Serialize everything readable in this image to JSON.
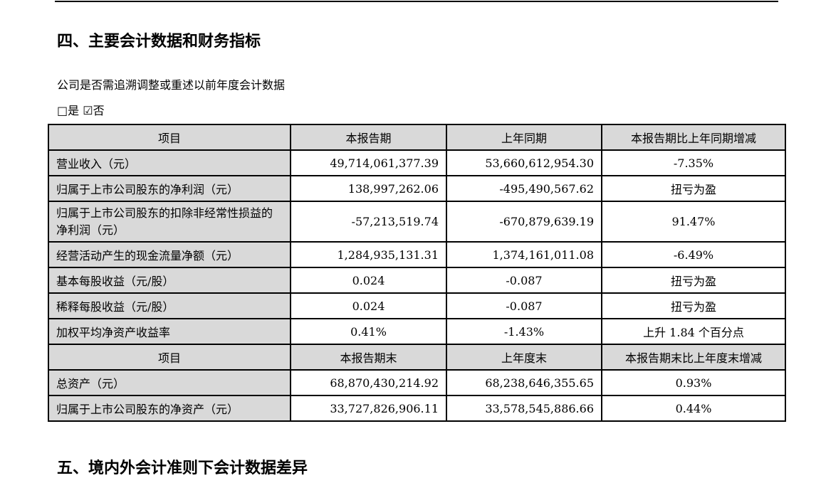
{
  "section_title": "四、主要会计数据和财务指标",
  "question": "公司是否需追溯调整或重述以前年度会计数据",
  "options": {
    "yes": "□是",
    "no": "☑否"
  },
  "table1": {
    "headers": [
      "项目",
      "本报告期",
      "上年同期",
      "本报告期比上年同期增减"
    ],
    "rows": [
      [
        "营业收入（元）",
        "49,714,061,377.39",
        "53,660,612,954.30",
        "-7.35%"
      ],
      [
        "归属于上市公司股东的净利润（元）",
        "138,997,262.06",
        "-495,490,567.62",
        "扭亏为盈"
      ],
      [
        "归属于上市公司股东的扣除非经常性损益的净利润（元）",
        "-57,213,519.74",
        "-670,879,639.19",
        "91.47%"
      ],
      [
        "经营活动产生的现金流量净额（元）",
        "1,284,935,131.31",
        "1,374,161,011.08",
        "-6.49%"
      ],
      [
        "基本每股收益（元/股）",
        "0.024",
        "-0.087",
        "扭亏为盈"
      ],
      [
        "稀释每股收益（元/股）",
        "0.024",
        "-0.087",
        "扭亏为盈"
      ],
      [
        "加权平均净资产收益率",
        "0.41%",
        "-1.43%",
        "上升 1.84 个百分点"
      ]
    ]
  },
  "table2": {
    "headers": [
      "项目",
      "本报告期末",
      "上年度末",
      "本报告期末比上年度末增减"
    ],
    "rows": [
      [
        "总资产（元）",
        "68,870,430,214.92",
        "68,238,646,355.65",
        "0.93%"
      ],
      [
        "归属于上市公司股东的净资产（元）",
        "33,727,826,906.11",
        "33,578,545,886.66",
        "0.44%"
      ]
    ]
  },
  "next_section_title": "五、境内外会计准则下会计数据差异"
}
